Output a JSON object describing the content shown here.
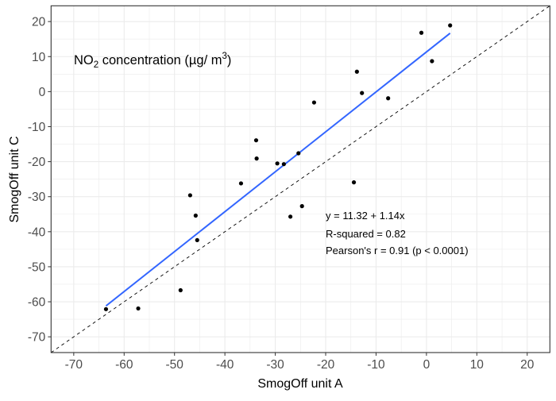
{
  "chart_data": {
    "type": "scatter",
    "title": "NO2 concentration (µg/ m3)",
    "title_parts": {
      "main": "NO",
      "sub": "2",
      "rest": " concentration (µg/ m",
      "sup": "3",
      "end": ")"
    },
    "xlabel": "SmogOff unit A",
    "ylabel": "SmogOff unit C",
    "xlim": [
      -74.5,
      24.5
    ],
    "ylim": [
      -74.5,
      24.5
    ],
    "xticks": [
      -70,
      -60,
      -50,
      -40,
      -30,
      -20,
      -10,
      0,
      10,
      20
    ],
    "yticks": [
      -70,
      -60,
      -50,
      -40,
      -30,
      -20,
      -10,
      0,
      10,
      20
    ],
    "grid": true,
    "points": [
      {
        "x": -63.6,
        "y": -62.1
      },
      {
        "x": -57.2,
        "y": -61.9
      },
      {
        "x": -48.8,
        "y": -56.7
      },
      {
        "x": -46.9,
        "y": -29.6
      },
      {
        "x": -45.8,
        "y": -35.4
      },
      {
        "x": -45.5,
        "y": -42.4
      },
      {
        "x": -36.8,
        "y": -26.2
      },
      {
        "x": -27.0,
        "y": -35.7
      },
      {
        "x": -24.7,
        "y": -32.7
      },
      {
        "x": -33.8,
        "y": -13.9
      },
      {
        "x": -33.7,
        "y": -19.1
      },
      {
        "x": -29.6,
        "y": -20.5
      },
      {
        "x": -28.3,
        "y": -20.7
      },
      {
        "x": -25.4,
        "y": -17.6
      },
      {
        "x": -22.3,
        "y": -3.1
      },
      {
        "x": -14.4,
        "y": -25.9
      },
      {
        "x": -13.8,
        "y": 5.7
      },
      {
        "x": -12.8,
        "y": -0.4
      },
      {
        "x": -7.6,
        "y": -1.9
      },
      {
        "x": -1.0,
        "y": 16.8
      },
      {
        "x": 1.1,
        "y": 8.7
      },
      {
        "x": 4.7,
        "y": 18.9
      }
    ],
    "regression": {
      "intercept": 11.32,
      "slope": 1.14,
      "x_range": [
        -63.6,
        4.7
      ],
      "color": "#3366ff"
    },
    "identity_line": {
      "slope": 1,
      "intercept": 0,
      "style": "dashed",
      "color": "#000000"
    },
    "annotations": [
      "y = 11.32 + 1.14x",
      "R-squared = 0.82",
      "Pearson's r = 0.91 (p < 0.0001)"
    ]
  }
}
